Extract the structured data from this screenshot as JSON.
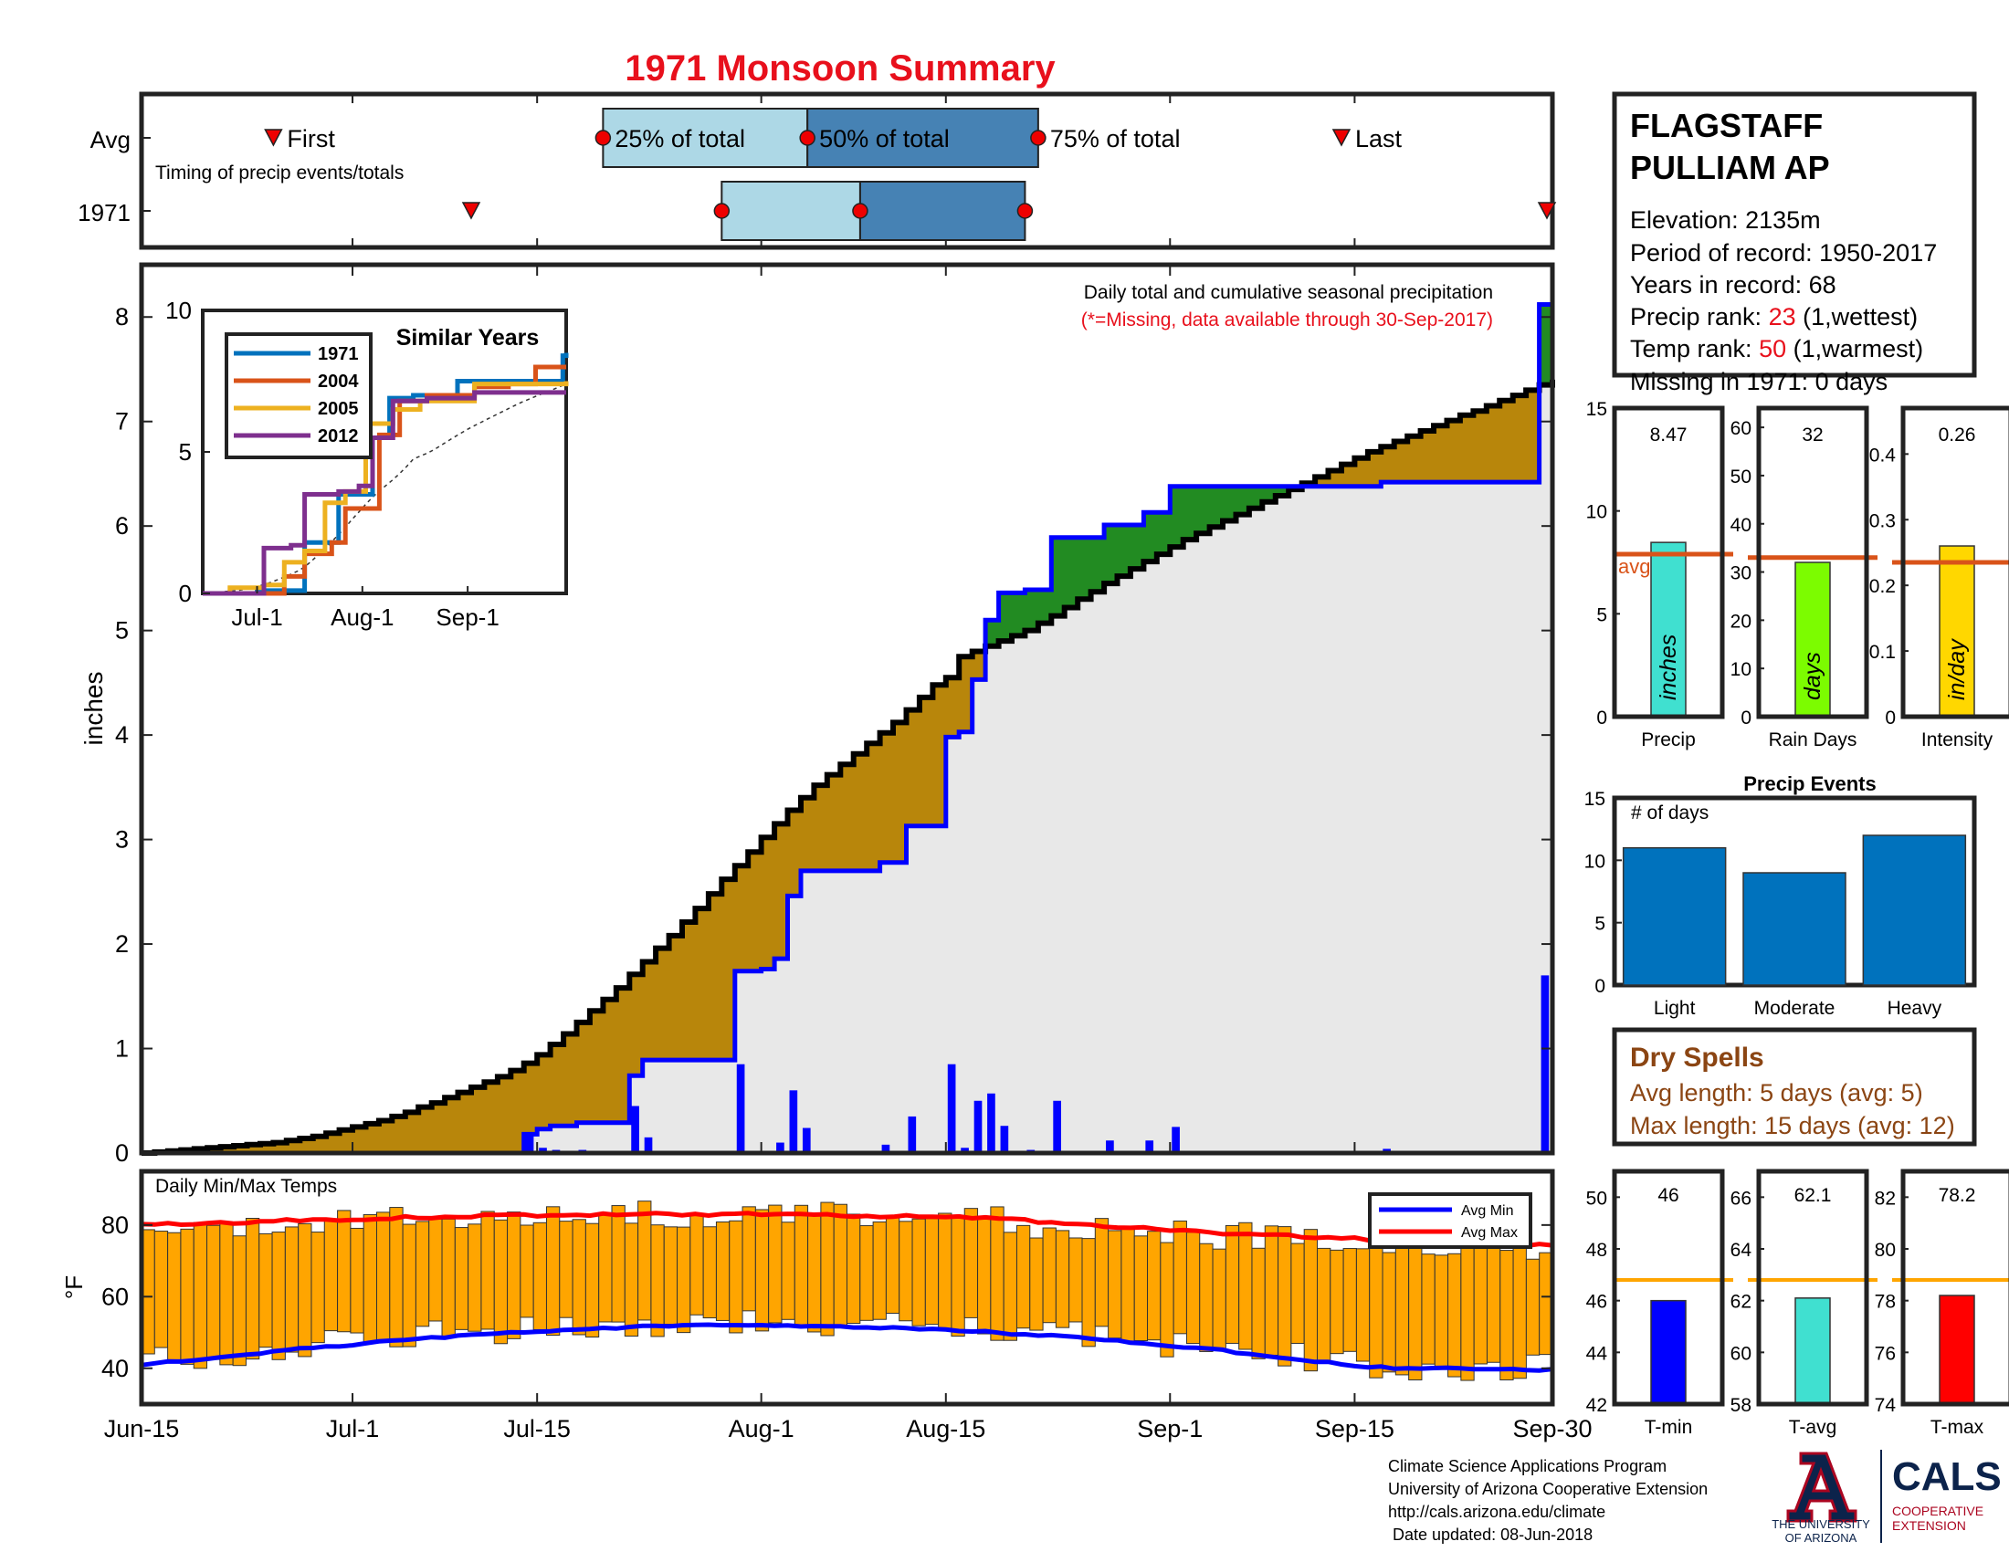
{
  "title": "1971 Monsoon Summary",
  "timing": {
    "row_labels": [
      "Avg",
      "1971"
    ],
    "caption": "Timing of precip events/totals",
    "labels": {
      "first": "First",
      "p25": "25% of total",
      "p50": "50% of total",
      "p75": "75% of total",
      "last": "Last"
    },
    "avg": {
      "first": 10,
      "p25": 35,
      "p50": 50.5,
      "p75": 68,
      "last": 91
    },
    "year": {
      "first": 25,
      "p25": 44,
      "p50": 54.5,
      "p75": 67,
      "last": 107
    }
  },
  "station": {
    "name_lines": [
      "FLAGSTAFF",
      "PULLIAM AP"
    ],
    "elevation": "Elevation: 2135m",
    "period": "Period of record: 1950-2017",
    "years": "Years in record: 68",
    "precip_rank_label": "Precip rank: ",
    "precip_rank_value": "23",
    "precip_rank_note": " (1,wettest)",
    "temp_rank_label": "Temp rank: ",
    "temp_rank_value": "50",
    "temp_rank_note": " (1,warmest)",
    "missing": "Missing in 1971: 0 days"
  },
  "main_chart": {
    "note": "Daily total and cumulative seasonal precipitation",
    "missing_note": "(*=Missing, data available through 30-Sep-2017)",
    "ylabel": "inches",
    "yticks": [
      0,
      1,
      2,
      3,
      4,
      5,
      6,
      7,
      8
    ],
    "ylim": [
      0,
      8.5
    ],
    "xticks": [
      {
        "label": "Jun-15",
        "day": 0
      },
      {
        "label": "Jul-1",
        "day": 16
      },
      {
        "label": "Jul-15",
        "day": 30
      },
      {
        "label": "Aug-1",
        "day": 47
      },
      {
        "label": "Aug-15",
        "day": 61
      },
      {
        "label": "Sep-1",
        "day": 78
      },
      {
        "label": "Sep-15",
        "day": 92
      },
      {
        "label": "Sep-30",
        "day": 107
      }
    ]
  },
  "chart_data": [
    {
      "type": "area",
      "name": "cumulative precipitation",
      "ylabel": "inches",
      "ylim": [
        0,
        8.5
      ],
      "x_start": "Jun-15",
      "x_end": "Sep-30",
      "avg_cumulative": [
        0,
        0.01,
        0.02,
        0.03,
        0.04,
        0.05,
        0.06,
        0.07,
        0.08,
        0.09,
        0.1,
        0.12,
        0.14,
        0.16,
        0.19,
        0.22,
        0.25,
        0.28,
        0.31,
        0.35,
        0.39,
        0.44,
        0.48,
        0.53,
        0.58,
        0.63,
        0.68,
        0.73,
        0.79,
        0.86,
        0.94,
        1.04,
        1.14,
        1.25,
        1.36,
        1.47,
        1.58,
        1.71,
        1.83,
        1.96,
        2.08,
        2.21,
        2.34,
        2.48,
        2.62,
        2.75,
        2.88,
        3.02,
        3.15,
        3.28,
        3.4,
        3.52,
        3.62,
        3.72,
        3.82,
        3.92,
        4.02,
        4.12,
        4.24,
        4.36,
        4.48,
        4.55,
        4.75,
        4.8,
        4.85,
        4.9,
        4.95,
        5.0,
        5.07,
        5.14,
        5.22,
        5.3,
        5.37,
        5.45,
        5.52,
        5.59,
        5.66,
        5.73,
        5.8,
        5.87,
        5.93,
        5.99,
        6.05,
        6.11,
        6.17,
        6.23,
        6.29,
        6.35,
        6.41,
        6.47,
        6.53,
        6.59,
        6.65,
        6.71,
        6.76,
        6.81,
        6.86,
        6.91,
        6.96,
        7.01,
        7.06,
        7.1,
        7.15,
        7.2,
        7.25,
        7.3,
        7.35,
        7.4
      ],
      "year_daily": [
        {
          "day": 29,
          "value": 0.18
        },
        {
          "day": 30,
          "value": 0.05
        },
        {
          "day": 31,
          "value": 0.03
        },
        {
          "day": 33,
          "value": 0.03
        },
        {
          "day": 37,
          "value": 0.45
        },
        {
          "day": 38,
          "value": 0.15
        },
        {
          "day": 45,
          "value": 0.85
        },
        {
          "day": 47,
          "value": 0.02
        },
        {
          "day": 48,
          "value": 0.1
        },
        {
          "day": 49,
          "value": 0.6
        },
        {
          "day": 50,
          "value": 0.24
        },
        {
          "day": 56,
          "value": 0.08
        },
        {
          "day": 58,
          "value": 0.35
        },
        {
          "day": 61,
          "value": 0.85
        },
        {
          "day": 62,
          "value": 0.05
        },
        {
          "day": 63,
          "value": 0.5
        },
        {
          "day": 64,
          "value": 0.57
        },
        {
          "day": 65,
          "value": 0.26
        },
        {
          "day": 67,
          "value": 0.03
        },
        {
          "day": 69,
          "value": 0.5
        },
        {
          "day": 73,
          "value": 0.12
        },
        {
          "day": 76,
          "value": 0.12
        },
        {
          "day": 78,
          "value": 0.25
        },
        {
          "day": 94,
          "value": 0.04
        },
        {
          "day": 106,
          "value": 1.7
        }
      ],
      "year_cumulative_final": 8.47
    },
    {
      "type": "line",
      "name": "Similar Years",
      "title": "Similar Years",
      "xticks": [
        "Jul-1",
        "Aug-1",
        "Sep-1"
      ],
      "ylim": [
        0,
        10
      ],
      "yticks": [
        0,
        5,
        10
      ],
      "series": [
        {
          "name": "1971",
          "color": "#0072BD"
        },
        {
          "name": "2004",
          "color": "#D95319"
        },
        {
          "name": "2005",
          "color": "#EDB120"
        },
        {
          "name": "2012",
          "color": "#7E2F8E"
        }
      ]
    },
    {
      "type": "bar",
      "name": "season totals",
      "categories": [
        "Precip",
        "Rain Days",
        "Intensity"
      ],
      "values": [
        8.47,
        32,
        0.26
      ],
      "averages": [
        7.9,
        33,
        0.235
      ],
      "ylims": [
        [
          0,
          15
        ],
        [
          0,
          64
        ],
        [
          0,
          0.47
        ]
      ],
      "bar_labels": [
        "inches",
        "days",
        "in/day"
      ],
      "avg_label": "avg"
    },
    {
      "type": "bar",
      "title": "Precip Events",
      "ylabel": "# of days",
      "categories": [
        "Light",
        "Moderate",
        "Heavy"
      ],
      "values": [
        11,
        9,
        12
      ],
      "ylim": [
        0,
        15
      ]
    },
    {
      "type": "bar",
      "name": "Daily Min/Max Temps",
      "ylabel": "°F",
      "ylim": [
        30,
        95
      ],
      "yticks": [
        40,
        60,
        80
      ],
      "legend": [
        "Avg Min",
        "Avg Max"
      ]
    },
    {
      "type": "bar",
      "name": "temperature summary",
      "categories": [
        "T-min",
        "T-avg",
        "T-max"
      ],
      "values": [
        46,
        62.1,
        78.2
      ],
      "averages": [
        46.8,
        62.8,
        78.8
      ]
    }
  ],
  "precip_summary": {
    "labels": [
      "Precip",
      "Rain Days",
      "Intensity"
    ],
    "values": [
      "8.47",
      "32",
      "0.26"
    ],
    "units": [
      "inches",
      "days",
      "in/day"
    ],
    "avg_label": "avg",
    "panels": [
      {
        "yticks": [
          0,
          5,
          10,
          15
        ]
      },
      {
        "yticks": [
          0,
          10,
          20,
          30,
          40,
          50,
          60
        ]
      },
      {
        "yticks": [
          "0",
          "0.1",
          "0.2",
          "0.3",
          "0.4"
        ]
      }
    ]
  },
  "events": {
    "title": "Precip Events",
    "ylabel": "# of days",
    "categories": [
      "Light",
      "Moderate",
      "Heavy"
    ],
    "yticks": [
      0,
      5,
      10,
      15
    ]
  },
  "dry_spells": {
    "title": "Dry Spells",
    "avg_length": "Avg length: 5 days (avg: 5)",
    "max_length": "Max length: 15 days (avg: 12)"
  },
  "temps": {
    "title": "Daily Min/Max Temps",
    "ylabel": "°F",
    "yticks": [
      40,
      60,
      80
    ],
    "legend_min": "Avg Min",
    "legend_max": "Avg Max"
  },
  "temp_summary": {
    "labels": [
      "T-min",
      "T-avg",
      "T-max"
    ],
    "values": [
      "46",
      "62.1",
      "78.2"
    ],
    "panels": [
      {
        "yticks": [
          42,
          44,
          46,
          48,
          50
        ]
      },
      {
        "yticks": [
          58,
          60,
          62,
          64,
          66
        ]
      },
      {
        "yticks": [
          74,
          76,
          78,
          80,
          82
        ]
      }
    ]
  },
  "footer": {
    "lines": [
      "Climate Science Applications Program",
      "University of Arizona Cooperative Extension",
      "http://cals.arizona.edu/climate",
      " Date updated: 08-Jun-2018"
    ],
    "ua_logo_text": [
      "THE UNIVERSITY",
      "OF ARIZONA"
    ],
    "cals_text": "CALS",
    "cals_sub": [
      "COOPERATIVE",
      "EXTENSION"
    ]
  },
  "colors": {
    "title": "#e8101c",
    "light_blue": "#add8e6",
    "steel_blue": "#4682b4",
    "brown": "#b8860b",
    "green": "#228b22",
    "blue": "#0000ff",
    "red": "#ff0000",
    "orange": "#ffa500",
    "turquoise": "#40e0d0",
    "lime": "#7cfc00",
    "gold": "#ffd700",
    "bar_blue": "#0072bd",
    "avg_line": "#d95319",
    "dry_brown": "#8b4513",
    "gray_fill": "#e8e8e8",
    "ua_navy": "#0c234b",
    "ua_red": "#ab0520"
  }
}
